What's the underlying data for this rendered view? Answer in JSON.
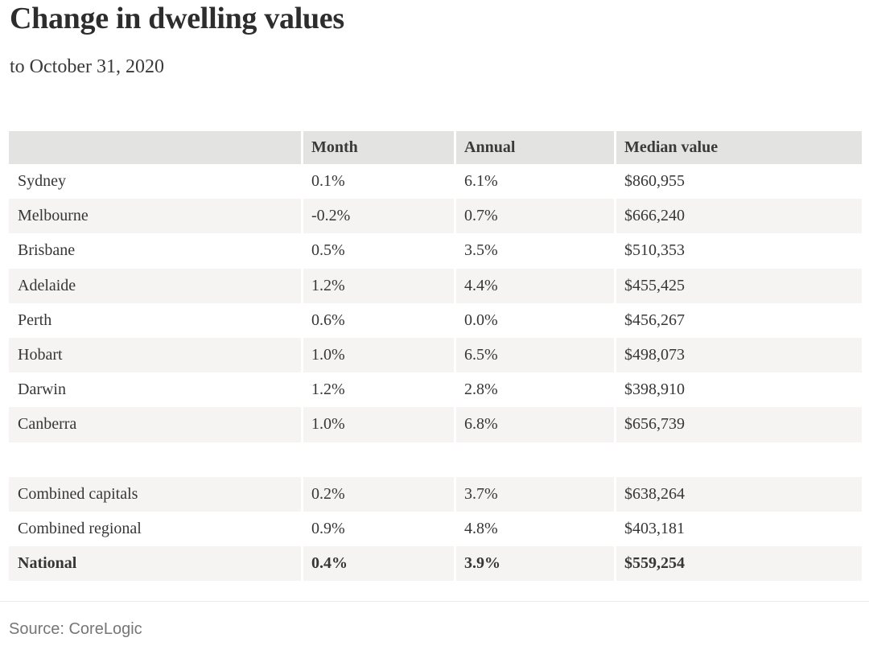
{
  "page": {
    "title": "Change in dwelling values",
    "subtitle": "to October 31, 2020",
    "source": "Source: CoreLogic"
  },
  "colors": {
    "header_bg": "#e3e3e2",
    "stripe_bg": "#f5f4f2",
    "text": "#363636",
    "source_text": "#767676"
  },
  "chart_data": {
    "type": "table",
    "title": "Change in dwelling values",
    "subtitle": "to October 31, 2020",
    "source": "Source: CoreLogic",
    "columns": [
      "",
      "Month",
      "Annual",
      "Median value"
    ],
    "groups": [
      {
        "name": "capital_cities",
        "rows": [
          {
            "label": "Sydney",
            "month": "0.1%",
            "annual": "6.1%",
            "median_value": "$860,955"
          },
          {
            "label": "Melbourne",
            "month": "-0.2%",
            "annual": "0.7%",
            "median_value": "$666,240"
          },
          {
            "label": "Brisbane",
            "month": "0.5%",
            "annual": "3.5%",
            "median_value": "$510,353"
          },
          {
            "label": "Adelaide",
            "month": "1.2%",
            "annual": "4.4%",
            "median_value": "$455,425"
          },
          {
            "label": "Perth",
            "month": "0.6%",
            "annual": "0.0%",
            "median_value": "$456,267"
          },
          {
            "label": "Hobart",
            "month": "1.0%",
            "annual": "6.5%",
            "median_value": "$498,073"
          },
          {
            "label": "Darwin",
            "month": "1.2%",
            "annual": "2.8%",
            "median_value": "$398,910"
          },
          {
            "label": "Canberra",
            "month": "1.0%",
            "annual": "6.8%",
            "median_value": "$656,739"
          }
        ]
      },
      {
        "name": "combined_totals",
        "rows": [
          {
            "label": "Combined capitals",
            "month": "0.2%",
            "annual": "3.7%",
            "median_value": "$638,264"
          },
          {
            "label": "Combined regional",
            "month": "0.9%",
            "annual": "4.8%",
            "median_value": "$403,181"
          },
          {
            "label": "National",
            "month": "0.4%",
            "annual": "3.9%",
            "median_value": "$559,254",
            "emphasis": true
          }
        ]
      }
    ]
  }
}
